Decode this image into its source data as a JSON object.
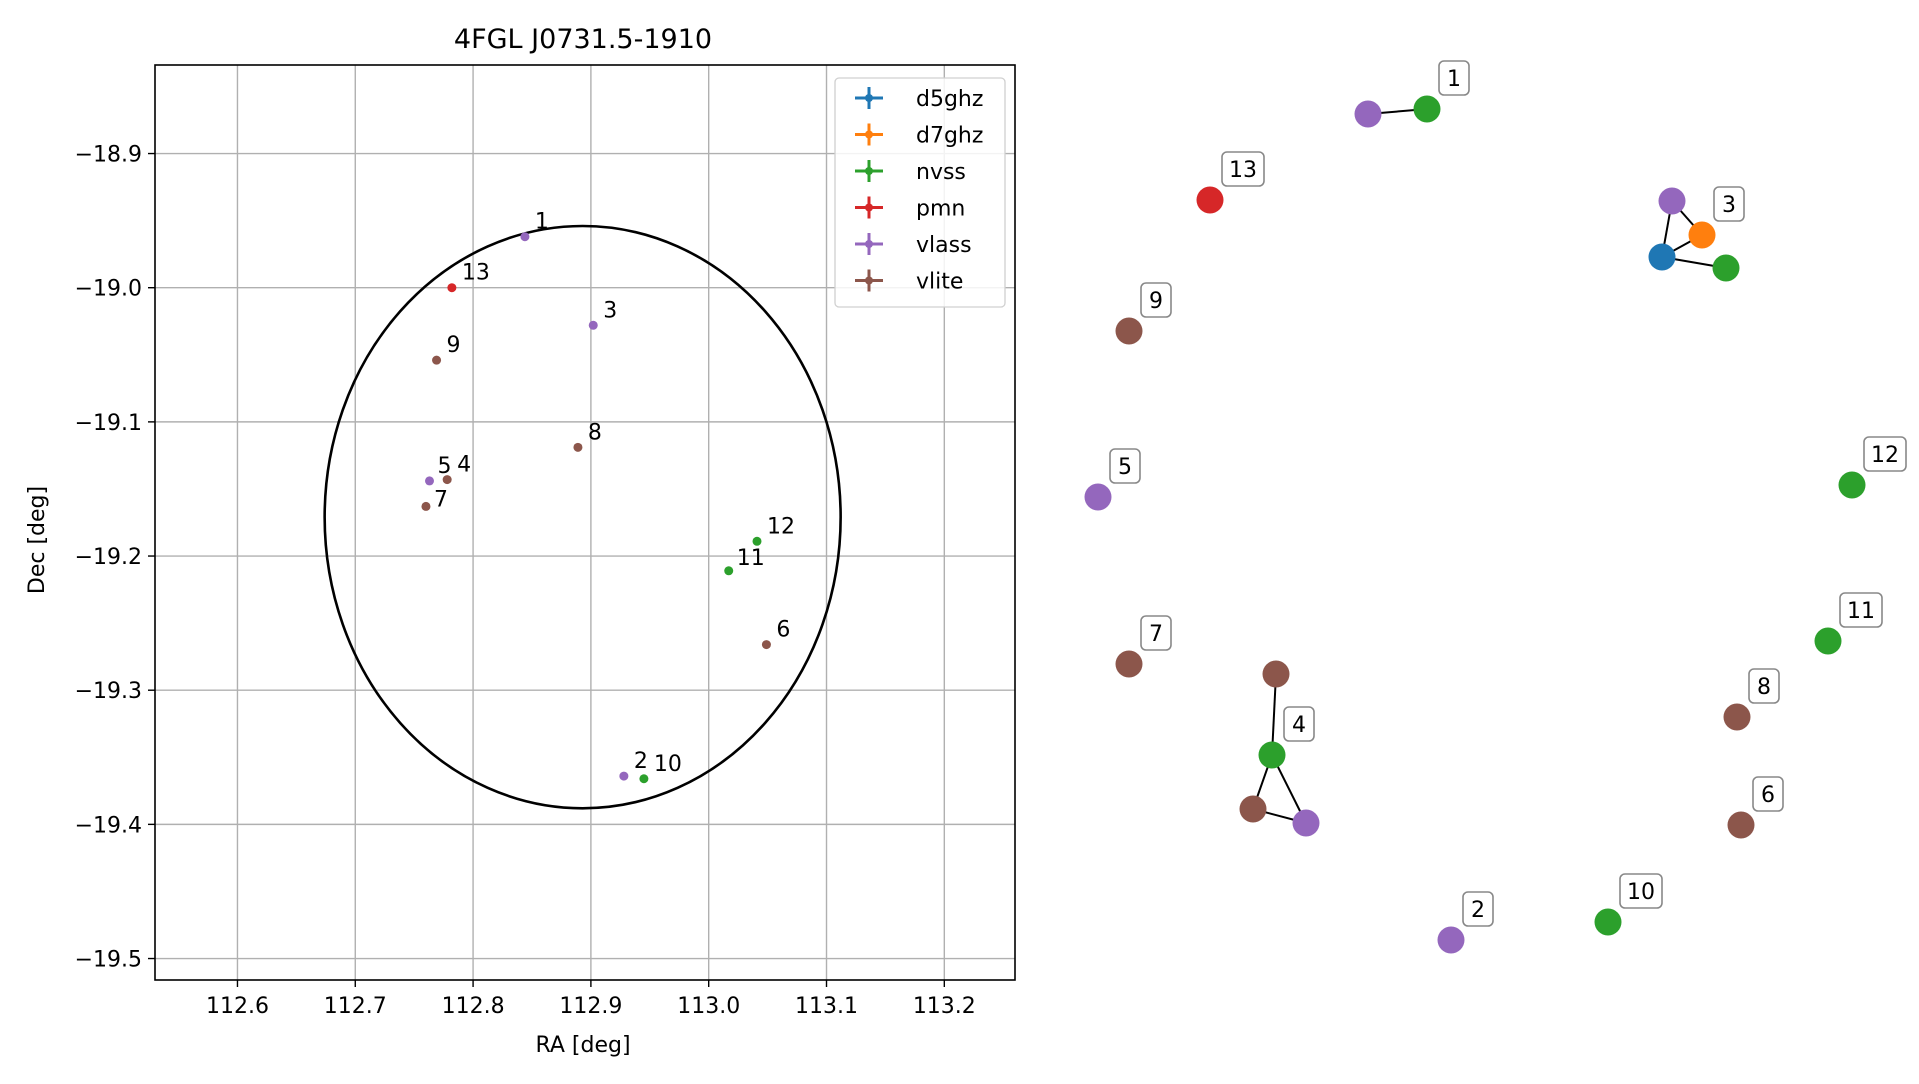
{
  "chart_data": [
    {
      "type": "scatter",
      "title": "4FGL J0731.5-1910",
      "xlabel": "RA [deg]",
      "ylabel": "Dec [deg]",
      "xlim": [
        112.53,
        113.26
      ],
      "ylim": [
        -19.516,
        -18.834
      ],
      "xticks": [
        112.6,
        112.7,
        112.8,
        112.9,
        113.0,
        113.1,
        113.2
      ],
      "yticks": [
        -18.9,
        -19.0,
        -19.1,
        -19.2,
        -19.3,
        -19.4,
        -19.5
      ],
      "xtick_labels": [
        "112.6",
        "112.7",
        "112.8",
        "112.9",
        "113.0",
        "113.1",
        "113.2"
      ],
      "ytick_labels": [
        "−18.9",
        "−19.0",
        "−19.1",
        "−19.2",
        "−19.3",
        "−19.4",
        "−19.5"
      ],
      "grid": true,
      "legend_position": "top-right",
      "series": [
        {
          "name": "d5ghz",
          "color": "#1f77b4",
          "points": []
        },
        {
          "name": "d7ghz",
          "color": "#ff7f0e",
          "points": []
        },
        {
          "name": "nvss",
          "color": "#2ca02c",
          "points": [
            {
              "label": "10",
              "x": 112.945,
              "y": -19.366
            },
            {
              "label": "11",
              "x": 113.017,
              "y": -19.211
            },
            {
              "label": "12",
              "x": 113.041,
              "y": -19.189
            }
          ]
        },
        {
          "name": "pmn",
          "color": "#d62728",
          "points": [
            {
              "label": "13",
              "x": 112.782,
              "y": -19.0
            }
          ]
        },
        {
          "name": "vlass",
          "color": "#9467bd",
          "points": [
            {
              "label": "1",
              "x": 112.844,
              "y": -18.962
            },
            {
              "label": "2",
              "x": 112.928,
              "y": -19.364
            },
            {
              "label": "3",
              "x": 112.902,
              "y": -19.028
            },
            {
              "label": "5",
              "x": 112.763,
              "y": -19.144
            }
          ]
        },
        {
          "name": "vlite",
          "color": "#8c564b",
          "points": [
            {
              "label": "4",
              "x": 112.778,
              "y": -19.143
            },
            {
              "label": "6",
              "x": 113.049,
              "y": -19.266
            },
            {
              "label": "7",
              "x": 112.76,
              "y": -19.163
            },
            {
              "label": "8",
              "x": 112.889,
              "y": -19.119
            },
            {
              "label": "9",
              "x": 112.769,
              "y": -19.054
            }
          ]
        }
      ],
      "ellipse": {
        "center_ra": 112.893,
        "center_dec": -19.171,
        "semi_ra": 0.219,
        "semi_dec": 0.217,
        "angle_deg": 0,
        "color": "#000000"
      }
    },
    {
      "type": "diagram",
      "nodes": [
        {
          "id": "1a",
          "label": "1",
          "color": "#2ca02c"
        },
        {
          "id": "1b",
          "label": "",
          "color": "#9467bd"
        },
        {
          "id": "13",
          "label": "13",
          "color": "#d62728"
        },
        {
          "id": "3a",
          "label": "3",
          "color": "#ff7f0e"
        },
        {
          "id": "3b",
          "label": "",
          "color": "#9467bd"
        },
        {
          "id": "3c",
          "label": "",
          "color": "#1f77b4"
        },
        {
          "id": "3d",
          "label": "",
          "color": "#2ca02c"
        },
        {
          "id": "9",
          "label": "9",
          "color": "#8c564b"
        },
        {
          "id": "5",
          "label": "5",
          "color": "#9467bd"
        },
        {
          "id": "12",
          "label": "12",
          "color": "#2ca02c"
        },
        {
          "id": "7",
          "label": "7",
          "color": "#8c564b"
        },
        {
          "id": "11",
          "label": "11",
          "color": "#2ca02c"
        },
        {
          "id": "4a",
          "label": "4",
          "color": "#2ca02c"
        },
        {
          "id": "4b",
          "label": "",
          "color": "#8c564b"
        },
        {
          "id": "4c",
          "label": "",
          "color": "#8c564b"
        },
        {
          "id": "4d",
          "label": "",
          "color": "#9467bd"
        },
        {
          "id": "8",
          "label": "8",
          "color": "#8c564b"
        },
        {
          "id": "6",
          "label": "6",
          "color": "#8c564b"
        },
        {
          "id": "2",
          "label": "2",
          "color": "#9467bd"
        },
        {
          "id": "10",
          "label": "10",
          "color": "#2ca02c"
        }
      ],
      "edges": [
        [
          "1a",
          "1b"
        ],
        [
          "3a",
          "3b"
        ],
        [
          "3a",
          "3c"
        ],
        [
          "3b",
          "3c"
        ],
        [
          "3c",
          "3d"
        ],
        [
          "4a",
          "4b"
        ],
        [
          "4a",
          "4c"
        ],
        [
          "4a",
          "4d"
        ],
        [
          "4c",
          "4d"
        ]
      ]
    }
  ]
}
